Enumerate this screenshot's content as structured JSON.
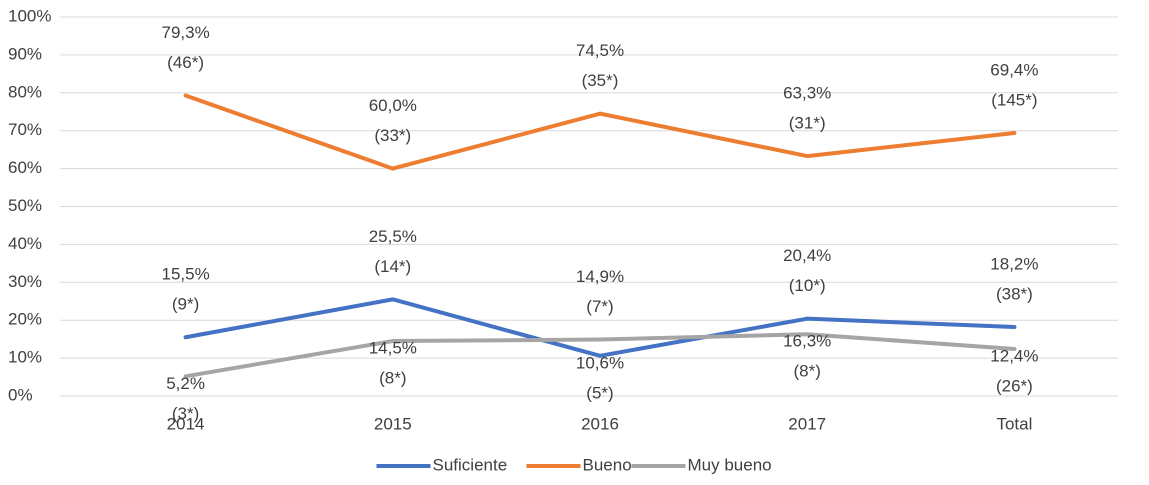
{
  "chart_data": {
    "type": "line",
    "categories": [
      "2014",
      "2015",
      "2016",
      "2017",
      "Total"
    ],
    "series": [
      {
        "name": "Suficiente",
        "color": "#4472c4",
        "values": [
          15.5,
          25.5,
          10.6,
          20.4,
          18.2
        ],
        "value_labels": [
          "15,5%",
          "25,5%",
          "10,6%",
          "20,4%",
          "18,2%"
        ],
        "count_labels": [
          "(9*)",
          "(14*)",
          "(5*)",
          "(10*)",
          "(38*)"
        ]
      },
      {
        "name": "Bueno",
        "color": "#ed7d31",
        "values": [
          79.3,
          60.0,
          74.5,
          63.3,
          69.4
        ],
        "value_labels": [
          "79,3%",
          "60,0%",
          "74,5%",
          "63,3%",
          "69,4%"
        ],
        "count_labels": [
          "(46*)",
          "(33*)",
          "(35*)",
          "(31*)",
          "(145*)"
        ]
      },
      {
        "name": "Muy bueno",
        "color": "#a5a5a5",
        "values": [
          5.2,
          14.5,
          14.9,
          16.3,
          12.4
        ],
        "value_labels": [
          "5,2%",
          "14,5%",
          "14,9%",
          "16,3%",
          "12,4%"
        ],
        "count_labels": [
          "(3*)",
          "(8*)",
          "(7*)",
          "(8*)",
          "(26*)"
        ]
      }
    ],
    "ylim": [
      0,
      100
    ],
    "yticks": [
      {
        "value": 0,
        "label": "0%"
      },
      {
        "value": 10,
        "label": "10%"
      },
      {
        "value": 20,
        "label": "20%"
      },
      {
        "value": 30,
        "label": "30%"
      },
      {
        "value": 40,
        "label": "40%"
      },
      {
        "value": 50,
        "label": "50%"
      },
      {
        "value": 60,
        "label": "60%"
      },
      {
        "value": 70,
        "label": "70%"
      },
      {
        "value": 80,
        "label": "80%"
      },
      {
        "value": 90,
        "label": "90%"
      },
      {
        "value": 100,
        "label": "100%"
      }
    ],
    "grid": true,
    "legend": "bottom"
  }
}
